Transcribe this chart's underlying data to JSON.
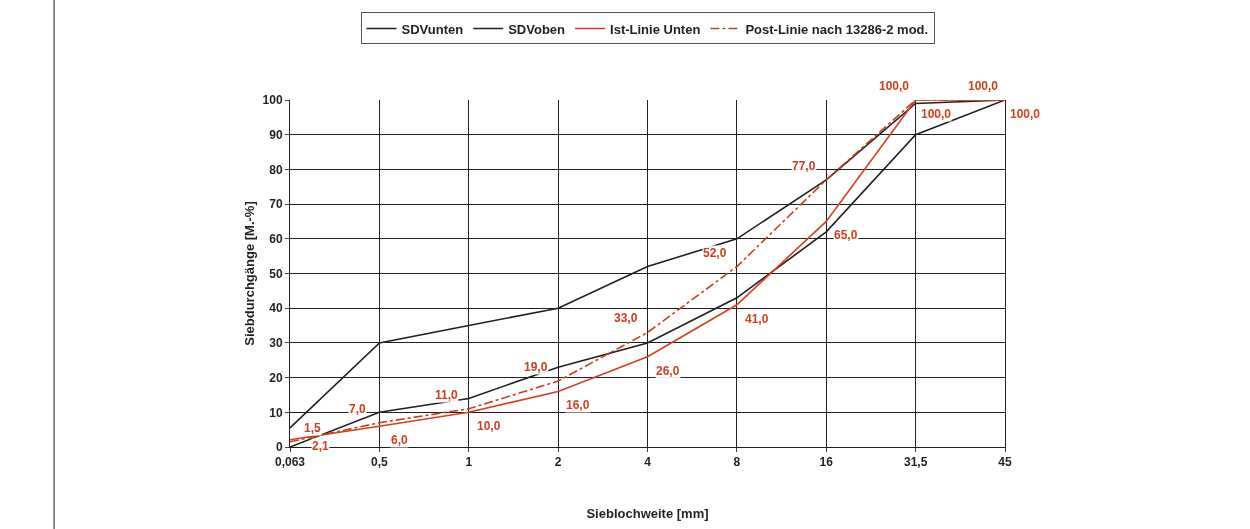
{
  "chart_data": {
    "type": "line",
    "xlabel": "Sieblochweite [mm]",
    "ylabel": "Siebdurchgänge [M.-%]",
    "categories": [
      "0,063",
      "0,5",
      "1",
      "2",
      "4",
      "8",
      "16",
      "31,5",
      "45"
    ],
    "ylim": [
      0,
      100
    ],
    "yticks": [
      0,
      10,
      20,
      30,
      40,
      50,
      60,
      70,
      80,
      90,
      100
    ],
    "grid": true,
    "legend": "top",
    "marker": "none",
    "series": [
      {
        "name": "SDVunten",
        "color": "#231f20",
        "line_style": "solid",
        "values": [
          0,
          10,
          14,
          23,
          30,
          43,
          62,
          90,
          100
        ]
      },
      {
        "name": "SDVoben",
        "color": "#231f20",
        "line_style": "solid",
        "values": [
          5.5,
          30,
          35,
          40,
          52,
          60,
          77,
          99,
          100
        ]
      },
      {
        "name": "Ist-Linie Unten",
        "color": "#d4401f",
        "line_style": "solid",
        "values": [
          2.1,
          6.0,
          10.0,
          16.0,
          26.0,
          41.0,
          65.0,
          100.0,
          100.0
        ],
        "value_labels": [
          "2,1",
          "6,0",
          "10,0",
          "16,0",
          "26,0",
          "41,0",
          "65,0",
          "100,0",
          "100,0"
        ]
      },
      {
        "name": "Post-Linie nach 13286-2 mod.",
        "color": "#c8401f",
        "line_style": "dashdot",
        "values": [
          1.5,
          7.0,
          11.0,
          19.0,
          33.0,
          52.0,
          77.0,
          100.0,
          100.0
        ],
        "value_labels": [
          "1,5",
          "7,0",
          "11,0",
          "19,0",
          "33,0",
          "52,0",
          "77,0",
          "100,0",
          "100,0"
        ]
      }
    ]
  }
}
